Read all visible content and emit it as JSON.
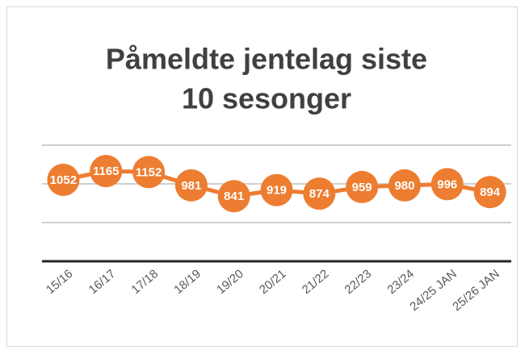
{
  "chart_data": {
    "type": "line",
    "title": [
      "Påmeldte jentelag siste",
      "10 sesonger"
    ],
    "categories": [
      "15/16",
      "16/17",
      "17/18",
      "18/19",
      "19/20",
      "20/21",
      "21/22",
      "22/23",
      "23/24",
      "24/25 JAN",
      "25/26 JAN"
    ],
    "series": [
      {
        "color": "#ed7d31",
        "values": [
          1052,
          1165,
          1152,
          981,
          841,
          919,
          874,
          959,
          980,
          996,
          894
        ]
      }
    ],
    "ylim": [
      0,
      1500
    ],
    "yticks": [
      0,
      500,
      1000,
      1500
    ],
    "grid": true
  }
}
